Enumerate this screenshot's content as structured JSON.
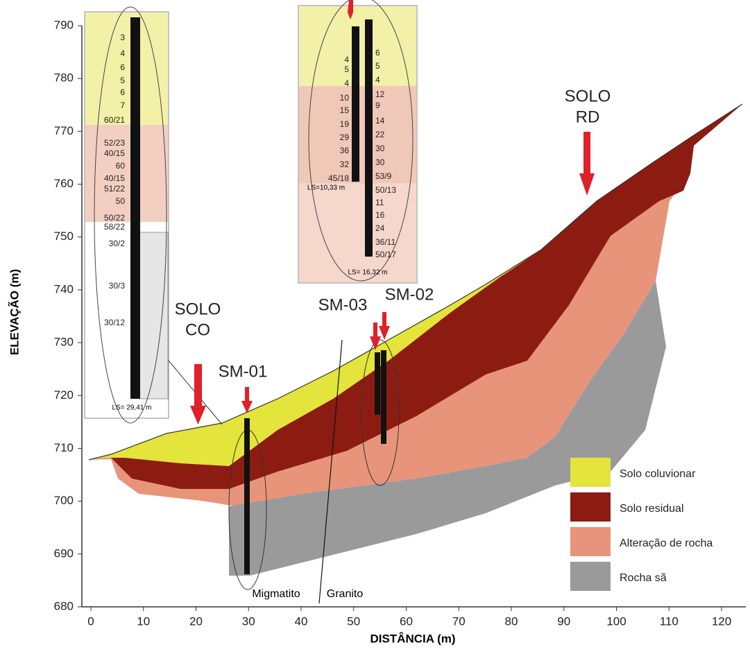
{
  "axes": {
    "x_label": "DISTÂNCIA (m)",
    "y_label": "ELEVAÇÃO (m)",
    "xlim": [
      0,
      120
    ],
    "xticks": [
      0,
      10,
      20,
      30,
      40,
      50,
      60,
      70,
      80,
      90,
      100,
      110,
      120
    ],
    "ylim": [
      680,
      790
    ],
    "yticks": [
      680,
      690,
      700,
      710,
      720,
      730,
      740,
      750,
      760,
      770,
      780,
      790
    ]
  },
  "annotations": {
    "solo_co": [
      "SOLO",
      "CO"
    ],
    "solo_rd": [
      "SOLO",
      "RD"
    ],
    "sm01": "SM-01",
    "sm03": "SM-03",
    "sm02": "SM-02",
    "migmatito": "Migmatito",
    "granito": "Granito"
  },
  "legend": [
    "Solo coluvionar",
    "Solo residual",
    "Alteração de rocha",
    "Rocha sã"
  ],
  "inset_sm01": {
    "spt": [
      "3",
      "4",
      "6",
      "5",
      "6",
      "7",
      "60/21",
      "52/23",
      "40/15",
      "60",
      "40/15",
      "51/22",
      "50",
      "50/22",
      "58/22",
      "30/2",
      "30/3",
      "30/12"
    ],
    "ls": "LS= 29,41 m"
  },
  "inset_sm03": {
    "spt": [
      "4",
      "5",
      "4",
      "10",
      "15",
      "19",
      "29",
      "36",
      "32",
      "45/18"
    ],
    "ls": "LS=10,33 m"
  },
  "inset_sm02": {
    "spt": [
      "6",
      "5",
      "4",
      "12",
      "9",
      "14",
      "22",
      "30",
      "30",
      "53/9",
      "50/13",
      "11",
      "16",
      "24",
      "36/11",
      "50/17"
    ],
    "ls": "LS= 16,32 m"
  }
}
